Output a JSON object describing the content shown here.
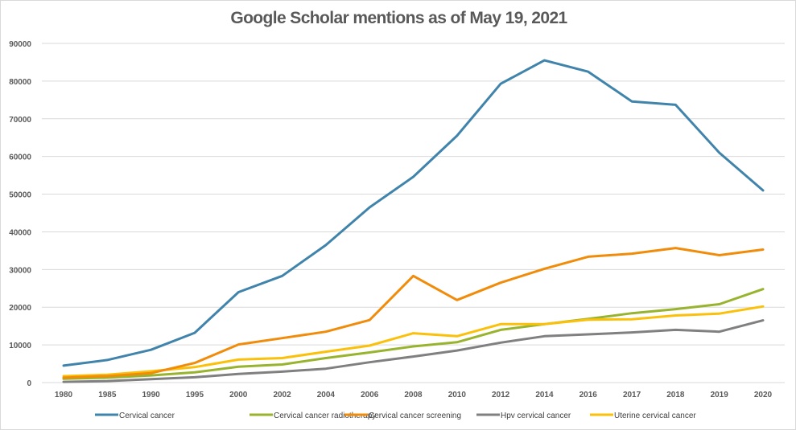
{
  "chart_data": {
    "type": "line",
    "title": "Google Scholar mentions as of May 19, 2021",
    "xlabel": "",
    "ylabel": "",
    "ylim": [
      0,
      90000
    ],
    "yticks": [
      0,
      10000,
      20000,
      30000,
      40000,
      50000,
      60000,
      70000,
      80000,
      90000
    ],
    "ytick_labels": [
      "0",
      "10000",
      "20000",
      "30000",
      "40000",
      "50000",
      "60000",
      "70000",
      "80000",
      "90000"
    ],
    "grid": true,
    "legend_position": "bottom",
    "categories": [
      "1980",
      "1985",
      "1990",
      "1995",
      "2000",
      "2002",
      "2004",
      "2006",
      "2008",
      "2010",
      "2012",
      "2014",
      "2016",
      "2017",
      "2018",
      "2019",
      "2020"
    ],
    "series": [
      {
        "name": "Cervical cancer",
        "color": "#4084ab",
        "values": [
          4500,
          6000,
          8700,
          13200,
          24000,
          28300,
          36500,
          46500,
          54600,
          65500,
          79300,
          85500,
          82500,
          74600,
          73700,
          61000,
          51000
        ]
      },
      {
        "name": "Cervical cancer radiotherapy",
        "color": "#98b42e",
        "values": [
          1000,
          1300,
          1900,
          2700,
          4200,
          4800,
          6500,
          8000,
          9600,
          10700,
          14000,
          15500,
          16900,
          18400,
          19500,
          20800,
          24800
        ]
      },
      {
        "name": "Cervical cancer screening",
        "color": "#f08c0a",
        "values": [
          1300,
          1700,
          2500,
          5200,
          10100,
          11800,
          13500,
          16600,
          28300,
          21900,
          26500,
          30200,
          33400,
          34200,
          35700,
          33800,
          35300
        ]
      },
      {
        "name": "Hpv cervical cancer",
        "color": "#808080",
        "values": [
          200,
          400,
          900,
          1400,
          2300,
          2900,
          3700,
          5400,
          6900,
          8500,
          10600,
          12300,
          12800,
          13300,
          14000,
          13500,
          16500
        ]
      },
      {
        "name": "Uterine cervical cancer",
        "color": "#fbc00a",
        "values": [
          1700,
          2100,
          3000,
          4100,
          6100,
          6500,
          8200,
          9800,
          13100,
          12300,
          15500,
          15500,
          16700,
          16800,
          17800,
          18300,
          20200
        ]
      }
    ]
  }
}
